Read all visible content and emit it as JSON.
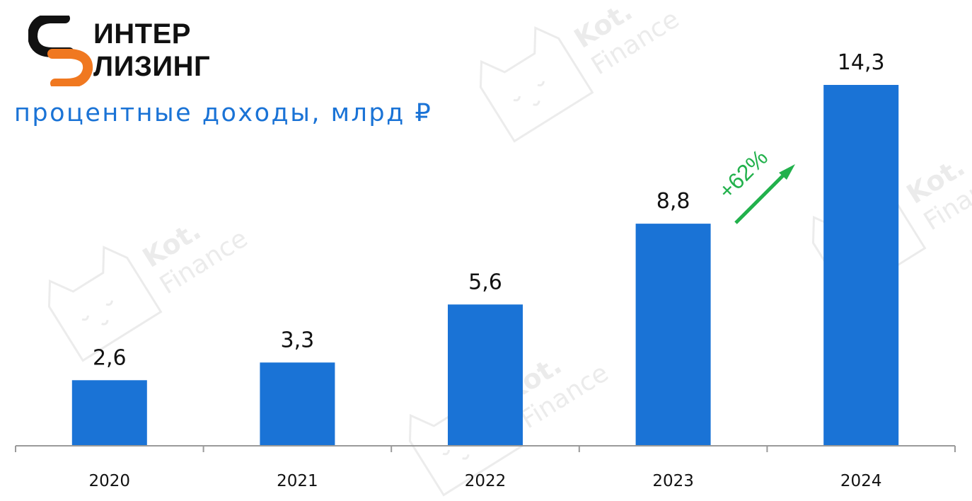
{
  "brand": {
    "line1": "ИНТЕР",
    "line2": "ЛИЗИНГ",
    "logo_icon": "s-swoosh-icon",
    "colors": {
      "black": "#111111",
      "orange": "#f07820"
    }
  },
  "watermark": {
    "line1": "Kot.",
    "line2": "Finance",
    "icon": "cat-paperclip-icon"
  },
  "chart_data": {
    "type": "bar",
    "title": "процентные доходы, млрд ₽",
    "categories": [
      "2020",
      "2021",
      "2022",
      "2023",
      "2024"
    ],
    "values": [
      2.6,
      3.3,
      5.6,
      8.8,
      14.3
    ],
    "data_labels": [
      "2,6",
      "3,3",
      "5,6",
      "8,8",
      "14,3"
    ],
    "bar_color": "#1a73d6",
    "ylim": [
      0,
      15
    ],
    "grid": false,
    "legend": "none",
    "annotation": {
      "text": "+62%",
      "color": "#22b14c",
      "from": "2023",
      "to": "2024"
    }
  }
}
